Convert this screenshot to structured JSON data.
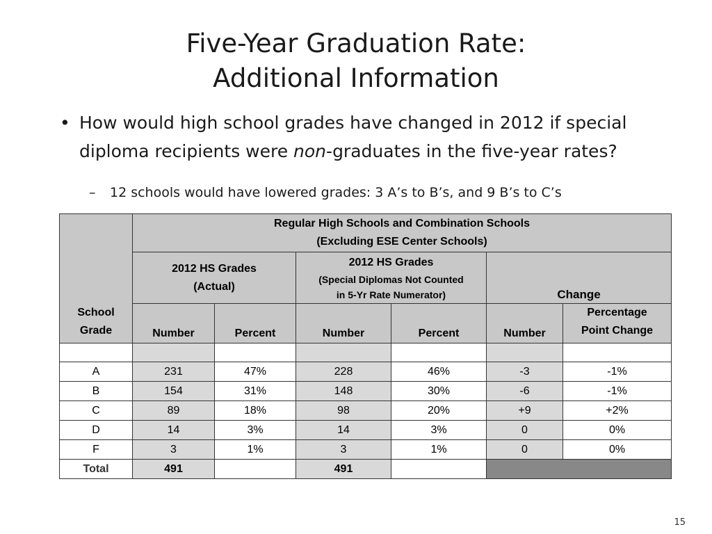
{
  "slide": {
    "title_line1": "Five-Year Graduation Rate:",
    "title_line2": "Additional Information",
    "bullet1_part1": "How would high school grades have changed in 2012 if special diploma recipients were ",
    "bullet1_emph": "non",
    "bullet1_part2": "-graduates in the five-year rates?",
    "bullet2": "12 schools would have lowered grades: 3 A’s to B’s, and 9 B’s to C’s",
    "page_number": "15"
  },
  "table": {
    "school_grade_header_line1": "School",
    "school_grade_header_line2": "Grade",
    "group_header_line1": "Regular High Schools and Combination Schools",
    "group_header_line2": "(Excluding ESE Center Schools)",
    "actual_header_line1": "2012 HS Grades",
    "actual_header_line2": "(Actual)",
    "special_header_line1": "2012 HS Grades",
    "special_header_line2": "(Special Diplomas Not Counted",
    "special_header_line3": "in 5-Yr Rate Numerator)",
    "change_header": "Change",
    "col_number": "Number",
    "col_percent": "Percent",
    "col_ppc_line1": "Percentage",
    "col_ppc_line2": "Point Change",
    "rows": [
      {
        "grade": "A",
        "act_num": "231",
        "act_pct": "47%",
        "sp_num": "228",
        "sp_pct": "46%",
        "chg_num": "-3",
        "chg_pct": "-1%"
      },
      {
        "grade": "B",
        "act_num": "154",
        "act_pct": "31%",
        "sp_num": "148",
        "sp_pct": "30%",
        "chg_num": "-6",
        "chg_pct": "-1%"
      },
      {
        "grade": "C",
        "act_num": "89",
        "act_pct": "18%",
        "sp_num": "98",
        "sp_pct": "20%",
        "chg_num": "+9",
        "chg_pct": "+2%"
      },
      {
        "grade": "D",
        "act_num": "14",
        "act_pct": "3%",
        "sp_num": "14",
        "sp_pct": "3%",
        "chg_num": "0",
        "chg_pct": "0%"
      },
      {
        "grade": "F",
        "act_num": "3",
        "act_pct": "1%",
        "sp_num": "3",
        "sp_pct": "1%",
        "chg_num": "0",
        "chg_pct": "0%"
      }
    ],
    "total_label": "Total",
    "total_act_num": "491",
    "total_sp_num": "491"
  },
  "colors": {
    "decrease": "#cc0000",
    "increase": "#117711",
    "header_fill": "#c8c8c8"
  }
}
